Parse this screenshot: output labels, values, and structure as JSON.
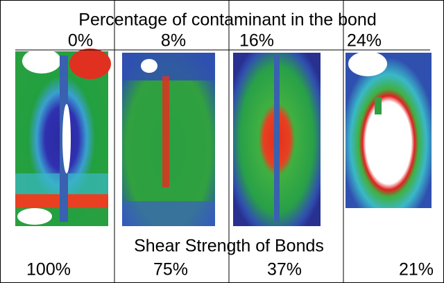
{
  "header": {
    "title": "Percentage of contaminant in the bond",
    "percentages": [
      "0%",
      "8%",
      "16%",
      "24%"
    ]
  },
  "footer": {
    "title": "Shear Strength of Bonds",
    "strengths": [
      "100%",
      "75%",
      "37%",
      "21%"
    ]
  }
}
